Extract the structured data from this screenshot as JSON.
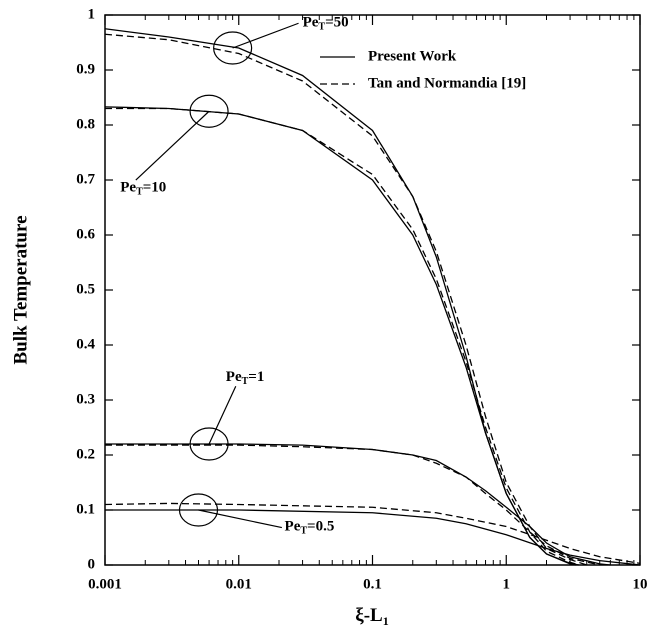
{
  "chart_data": {
    "type": "line",
    "xlabel": {
      "base": "ξ-L",
      "sub": "1"
    },
    "ylabel": "Bulk Temperature",
    "xscale": "log",
    "xlim": [
      0.001,
      10
    ],
    "xticks": [
      0.001,
      0.01,
      0.1,
      1,
      10
    ],
    "ylim": [
      0,
      1
    ],
    "yticks": [
      0,
      0.1,
      0.2,
      0.3,
      0.4,
      0.5,
      0.6,
      0.7,
      0.8,
      0.9,
      1
    ],
    "grid": false,
    "color": "#000000",
    "series": [
      {
        "name": "Present Work",
        "dash": false,
        "curves": [
          {
            "x": [
              0.001,
              0.003,
              0.01,
              0.03,
              0.1,
              0.2,
              0.3,
              0.5,
              0.7,
              1,
              1.5,
              2,
              3,
              3.5
            ],
            "values": [
              0.975,
              0.96,
              0.94,
              0.89,
              0.79,
              0.67,
              0.56,
              0.38,
              0.24,
              0.13,
              0.05,
              0.02,
              0.003,
              0
            ]
          },
          {
            "x": [
              0.001,
              0.003,
              0.01,
              0.03,
              0.1,
              0.2,
              0.3,
              0.5,
              0.7,
              1,
              1.5,
              2,
              3,
              3.3
            ],
            "values": [
              0.833,
              0.83,
              0.82,
              0.79,
              0.7,
              0.6,
              0.51,
              0.36,
              0.24,
              0.13,
              0.05,
              0.02,
              0.002,
              0
            ]
          },
          {
            "x": [
              0.001,
              0.01,
              0.03,
              0.1,
              0.2,
              0.3,
              0.5,
              0.7,
              1,
              1.5,
              2,
              3,
              5,
              6
            ],
            "values": [
              0.22,
              0.22,
              0.218,
              0.21,
              0.2,
              0.19,
              0.16,
              0.135,
              0.105,
              0.07,
              0.04,
              0.015,
              0.002,
              0
            ]
          },
          {
            "x": [
              0.001,
              0.01,
              0.1,
              0.3,
              0.5,
              1,
              2,
              3,
              5,
              10
            ],
            "values": [
              0.1,
              0.1,
              0.095,
              0.085,
              0.075,
              0.055,
              0.03,
              0.018,
              0.008,
              0
            ]
          }
        ]
      },
      {
        "name": "Tan and Normandia [19]",
        "dash": true,
        "curves": [
          {
            "x": [
              0.001,
              0.003,
              0.01,
              0.03,
              0.1,
              0.2,
              0.3,
              0.5,
              0.7,
              1,
              1.5,
              2,
              3,
              4
            ],
            "values": [
              0.965,
              0.955,
              0.93,
              0.88,
              0.78,
              0.67,
              0.57,
              0.4,
              0.27,
              0.15,
              0.07,
              0.03,
              0.01,
              0
            ]
          },
          {
            "x": [
              0.001,
              0.003,
              0.01,
              0.03,
              0.1,
              0.2,
              0.3,
              0.5,
              0.7,
              1,
              1.5,
              2,
              3,
              3.5
            ],
            "values": [
              0.83,
              0.83,
              0.82,
              0.79,
              0.71,
              0.61,
              0.52,
              0.37,
              0.25,
              0.14,
              0.06,
              0.025,
              0.005,
              0
            ]
          },
          {
            "x": [
              0.001,
              0.01,
              0.03,
              0.1,
              0.2,
              0.3,
              0.5,
              0.7,
              1,
              1.5,
              2,
              3,
              5
            ],
            "values": [
              0.218,
              0.218,
              0.215,
              0.21,
              0.2,
              0.185,
              0.16,
              0.13,
              0.1,
              0.06,
              0.035,
              0.012,
              0
            ]
          },
          {
            "x": [
              0.001,
              0.003,
              0.01,
              0.1,
              0.3,
              0.5,
              1,
              2,
              3,
              5,
              10
            ],
            "values": [
              0.11,
              0.112,
              0.11,
              0.105,
              0.095,
              0.085,
              0.07,
              0.045,
              0.03,
              0.015,
              0.003
            ]
          }
        ]
      }
    ],
    "annotations": [
      {
        "base": "Pe",
        "sub": "T",
        "rest": "=50"
      },
      {
        "base": "Pe",
        "sub": "T",
        "rest": "=10"
      },
      {
        "base": "Pe",
        "sub": "T",
        "rest": "=1"
      },
      {
        "base": "Pe",
        "sub": "T",
        "rest": "=0.5"
      }
    ]
  }
}
